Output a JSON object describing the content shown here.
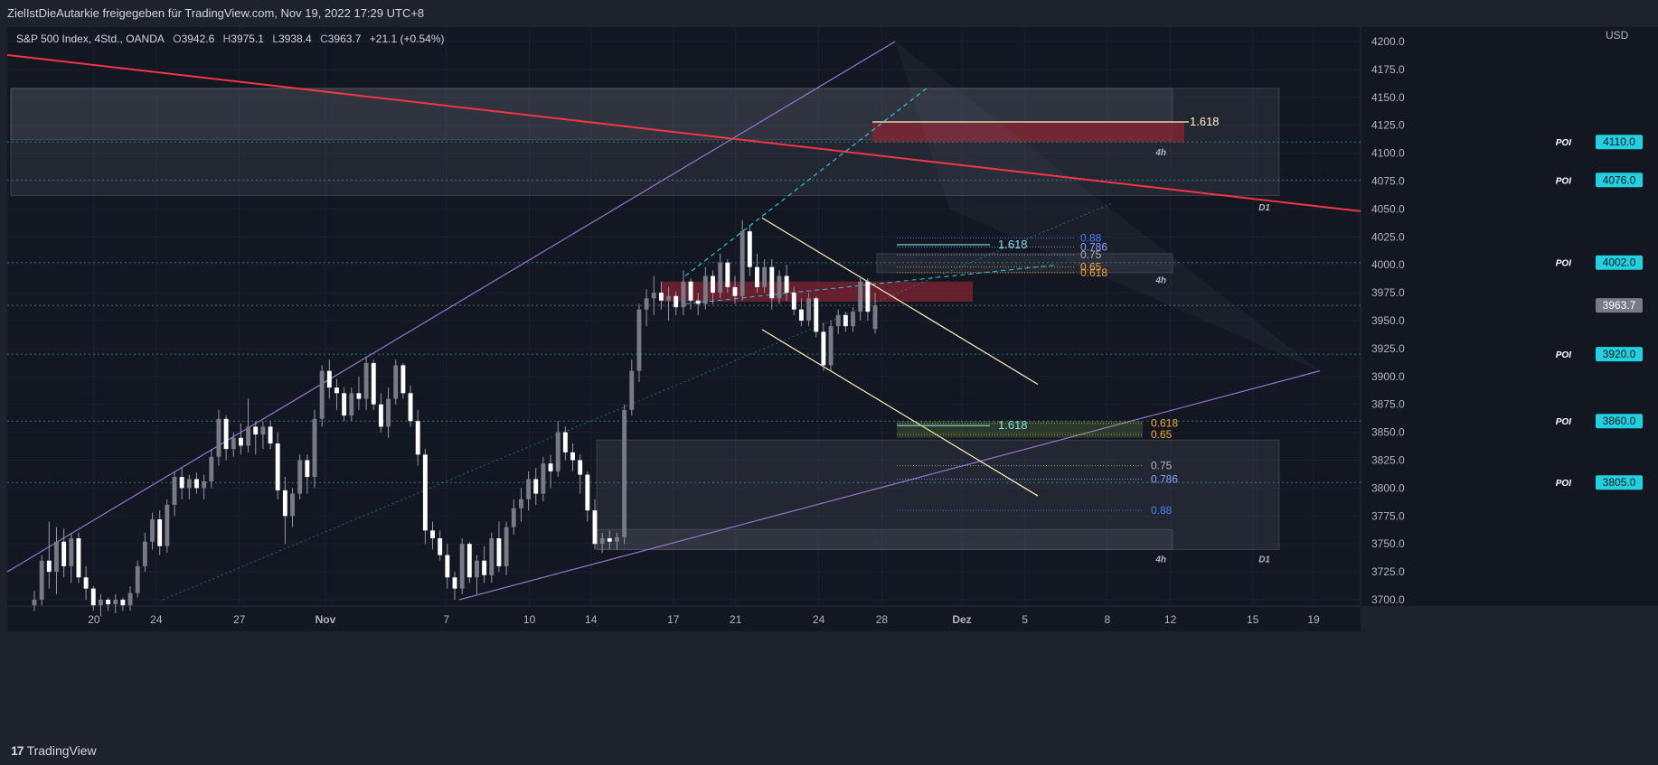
{
  "publisher_line": "ZielIstDieAutarkie freigegeben für TradingView.com, Nov 19, 2022 17:29 UTC+8",
  "legend": {
    "symbol": "S&P 500 Index, 4Std., OANDA",
    "open_label": "O",
    "open": "3942.6",
    "high_label": "H",
    "high": "3975.1",
    "low_label": "L",
    "low": "3938.4",
    "close_label": "C",
    "close": "3963.7",
    "change": "+21.1 (+0.54%)"
  },
  "currency": "USD",
  "footer": {
    "brand": "TradingView",
    "logo_mark": "17"
  },
  "colors": {
    "background": "#131722",
    "frame": "#1e222d",
    "bull": "#d1d4dc",
    "bear": "#ffffff",
    "trendline": "#f23645",
    "channel": "#9575cd",
    "poi_label_bg": "#22d0e0",
    "fib_yellow": "#fff3c4",
    "fib_orange": "#f7a531",
    "fib_blue": "#4f7cff",
    "fib_cyan": "#80deea",
    "zone_red": "#8a2432"
  },
  "chart_data": {
    "type": "candlestick",
    "x_labels": [
      "20",
      "24",
      "27",
      "Nov",
      "7",
      "10",
      "14",
      "17",
      "21",
      "24",
      "28",
      "Dez",
      "5",
      "8",
      "12",
      "15",
      "19"
    ],
    "y_ticks": [
      3700,
      3725,
      3750,
      3775,
      3800,
      3825,
      3850,
      3875,
      3900,
      3925,
      3950,
      3975,
      4000,
      4025,
      4050,
      4075,
      4100,
      4125,
      4150,
      4175,
      4200
    ],
    "ylim": [
      3695,
      4210
    ],
    "current_price": 3963.7,
    "poi_levels": [
      {
        "label": "POI",
        "price": 4110.0,
        "text": "4110.0"
      },
      {
        "label": "POI",
        "price": 4076.0,
        "text": "4076.0"
      },
      {
        "label": "POI",
        "price": 4002.0,
        "text": "4002.0"
      },
      {
        "label": "POI",
        "price": 3920.0,
        "text": "3920.0"
      },
      {
        "label": "POI",
        "price": 3860.0,
        "text": "3860.0"
      },
      {
        "label": "POI",
        "price": 3805.0,
        "text": "3805.0"
      }
    ],
    "current_label": "3963.7",
    "candles": [
      [
        3695,
        3708,
        3690,
        3700
      ],
      [
        3700,
        3740,
        3695,
        3735
      ],
      [
        3735,
        3770,
        3710,
        3725
      ],
      [
        3725,
        3765,
        3705,
        3752
      ],
      [
        3752,
        3764,
        3720,
        3730
      ],
      [
        3730,
        3760,
        3715,
        3755
      ],
      [
        3755,
        3760,
        3715,
        3720
      ],
      [
        3720,
        3730,
        3700,
        3710
      ],
      [
        3710,
        3712,
        3690,
        3695
      ],
      [
        3695,
        3705,
        3685,
        3700
      ],
      [
        3700,
        3702,
        3690,
        3696
      ],
      [
        3696,
        3705,
        3688,
        3700
      ],
      [
        3700,
        3702,
        3690,
        3695
      ],
      [
        3695,
        3712,
        3690,
        3706
      ],
      [
        3706,
        3735,
        3702,
        3730
      ],
      [
        3730,
        3760,
        3725,
        3752
      ],
      [
        3752,
        3778,
        3745,
        3772
      ],
      [
        3772,
        3780,
        3740,
        3748
      ],
      [
        3748,
        3790,
        3742,
        3785
      ],
      [
        3785,
        3815,
        3775,
        3810
      ],
      [
        3810,
        3818,
        3790,
        3800
      ],
      [
        3800,
        3812,
        3790,
        3808
      ],
      [
        3808,
        3814,
        3795,
        3800
      ],
      [
        3800,
        3812,
        3790,
        3806
      ],
      [
        3806,
        3835,
        3800,
        3828
      ],
      [
        3828,
        3870,
        3820,
        3862
      ],
      [
        3862,
        3865,
        3825,
        3835
      ],
      [
        3835,
        3850,
        3828,
        3845
      ],
      [
        3845,
        3858,
        3830,
        3838
      ],
      [
        3838,
        3880,
        3832,
        3855
      ],
      [
        3855,
        3860,
        3830,
        3848
      ],
      [
        3848,
        3860,
        3835,
        3855
      ],
      [
        3855,
        3860,
        3835,
        3840
      ],
      [
        3840,
        3850,
        3790,
        3798
      ],
      [
        3798,
        3810,
        3750,
        3775
      ],
      [
        3775,
        3800,
        3765,
        3795
      ],
      [
        3795,
        3830,
        3790,
        3825
      ],
      [
        3825,
        3830,
        3795,
        3810
      ],
      [
        3810,
        3870,
        3800,
        3862
      ],
      [
        3862,
        3910,
        3855,
        3905
      ],
      [
        3905,
        3915,
        3880,
        3890
      ],
      [
        3890,
        3898,
        3870,
        3885
      ],
      [
        3885,
        3890,
        3860,
        3865
      ],
      [
        3865,
        3890,
        3860,
        3885
      ],
      [
        3885,
        3900,
        3870,
        3880
      ],
      [
        3880,
        3918,
        3870,
        3912
      ],
      [
        3912,
        3915,
        3870,
        3875
      ],
      [
        3875,
        3885,
        3850,
        3855
      ],
      [
        3855,
        3890,
        3845,
        3880
      ],
      [
        3880,
        3915,
        3875,
        3910
      ],
      [
        3910,
        3912,
        3880,
        3885
      ],
      [
        3885,
        3892,
        3855,
        3860
      ],
      [
        3860,
        3870,
        3820,
        3830
      ],
      [
        3830,
        3835,
        3750,
        3762
      ],
      [
        3762,
        3770,
        3745,
        3755
      ],
      [
        3755,
        3762,
        3735,
        3740
      ],
      [
        3740,
        3750,
        3710,
        3720
      ],
      [
        3720,
        3725,
        3700,
        3710
      ],
      [
        3710,
        3755,
        3705,
        3750
      ],
      [
        3750,
        3752,
        3715,
        3720
      ],
      [
        3720,
        3740,
        3705,
        3735
      ],
      [
        3735,
        3748,
        3715,
        3722
      ],
      [
        3722,
        3760,
        3715,
        3755
      ],
      [
        3755,
        3770,
        3725,
        3730
      ],
      [
        3730,
        3770,
        3722,
        3765
      ],
      [
        3765,
        3790,
        3758,
        3782
      ],
      [
        3782,
        3800,
        3770,
        3790
      ],
      [
        3790,
        3815,
        3780,
        3808
      ],
      [
        3808,
        3818,
        3785,
        3795
      ],
      [
        3795,
        3828,
        3788,
        3822
      ],
      [
        3822,
        3830,
        3800,
        3815
      ],
      [
        3815,
        3860,
        3810,
        3850
      ],
      [
        3850,
        3855,
        3825,
        3832
      ],
      [
        3832,
        3840,
        3815,
        3825
      ],
      [
        3825,
        3830,
        3795,
        3812
      ],
      [
        3812,
        3815,
        3770,
        3780
      ],
      [
        3780,
        3790,
        3745,
        3750
      ],
      [
        3750,
        3760,
        3742,
        3755
      ],
      [
        3755,
        3762,
        3745,
        3752
      ],
      [
        3752,
        3760,
        3745,
        3756
      ],
      [
        3756,
        3875,
        3750,
        3870
      ],
      [
        3870,
        3915,
        3865,
        3905
      ],
      [
        3905,
        3965,
        3895,
        3960
      ],
      [
        3960,
        3978,
        3945,
        3970
      ],
      [
        3970,
        3990,
        3955,
        3975
      ],
      [
        3975,
        3985,
        3960,
        3968
      ],
      [
        3968,
        3980,
        3950,
        3972
      ],
      [
        3972,
        3976,
        3955,
        3962
      ],
      [
        3962,
        3995,
        3955,
        3985
      ],
      [
        3985,
        3988,
        3960,
        3968
      ],
      [
        3968,
        3975,
        3955,
        3965
      ],
      [
        3965,
        3998,
        3960,
        3990
      ],
      [
        3990,
        3995,
        3965,
        3975
      ],
      [
        3975,
        4010,
        3970,
        4002
      ],
      [
        4002,
        4005,
        3975,
        3980
      ],
      [
        3980,
        3990,
        3965,
        3972
      ],
      [
        3972,
        4040,
        3968,
        4030
      ],
      [
        4030,
        4035,
        3990,
        3998
      ],
      [
        3998,
        4010,
        3975,
        3980
      ],
      [
        3980,
        4005,
        3975,
        3998
      ],
      [
        3998,
        4005,
        3960,
        3970
      ],
      [
        3970,
        3995,
        3965,
        3990
      ],
      [
        3990,
        4000,
        3968,
        3975
      ],
      [
        3975,
        3980,
        3955,
        3960
      ],
      [
        3960,
        3970,
        3945,
        3950
      ],
      [
        3950,
        3975,
        3945,
        3970
      ],
      [
        3970,
        3972,
        3935,
        3940
      ],
      [
        3940,
        3948,
        3905,
        3910
      ],
      [
        3910,
        3950,
        3905,
        3945
      ],
      [
        3945,
        3960,
        3938,
        3955
      ],
      [
        3955,
        3958,
        3940,
        3945
      ],
      [
        3945,
        3962,
        3940,
        3958
      ],
      [
        3958,
        3990,
        3950,
        3985
      ],
      [
        3985,
        3988,
        3950,
        3958
      ],
      [
        3942.6,
        3975.1,
        3938.4,
        3963.7
      ]
    ],
    "fib_upper": [
      {
        "label": "1.618",
        "price": 4128
      },
      {
        "label": "1.618",
        "price": 4018
      },
      {
        "label": "0.88",
        "price": 4024
      },
      {
        "label": "0.786",
        "price": 4016
      },
      {
        "label": "0.75",
        "price": 4009
      },
      {
        "label": "0.65",
        "price": 3998
      },
      {
        "label": "0.618",
        "price": 3993
      }
    ],
    "fib_lower": [
      {
        "label": "0.618",
        "price": 3858
      },
      {
        "label": "0.65",
        "price": 3848
      },
      {
        "label": "1.618",
        "price": 3856
      },
      {
        "label": "0.75",
        "price": 3820
      },
      {
        "label": "0.786",
        "price": 3808
      },
      {
        "label": "0.88",
        "price": 3780
      }
    ],
    "zone_labels": [
      "4h",
      "D1",
      "4h",
      "4h",
      "D1"
    ]
  }
}
